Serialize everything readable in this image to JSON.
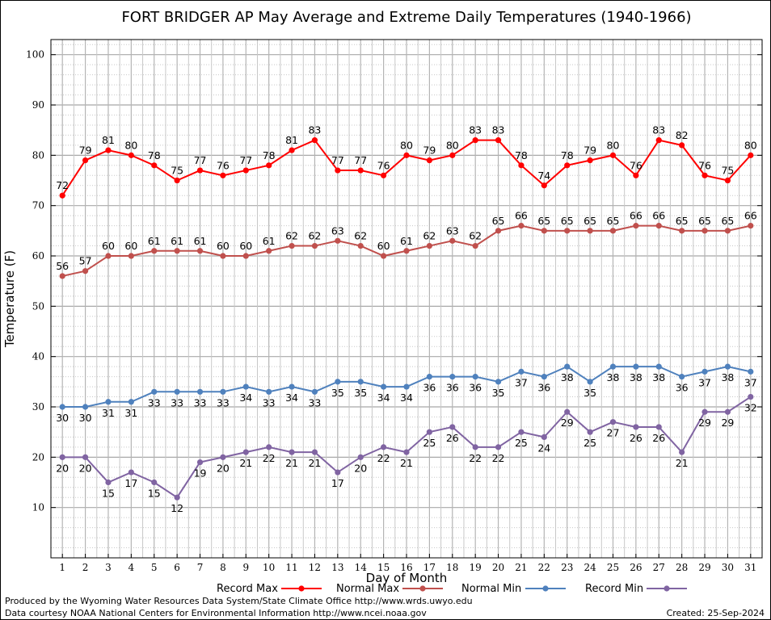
{
  "chart_data": {
    "type": "line",
    "title": "FORT BRIDGER AP May Average and Extreme Daily Temperatures (1940-1966)",
    "xlabel": "Day of Month",
    "ylabel": "Temperature (F)",
    "xlim": [
      0.5,
      31.5
    ],
    "ylim": [
      0,
      103
    ],
    "x": [
      1,
      2,
      3,
      4,
      5,
      6,
      7,
      8,
      9,
      10,
      11,
      12,
      13,
      14,
      15,
      16,
      17,
      18,
      19,
      20,
      21,
      22,
      23,
      24,
      25,
      26,
      27,
      28,
      29,
      30,
      31
    ],
    "x_tick_labels": [
      "1",
      "2",
      "3",
      "4",
      "5",
      "6",
      "7",
      "8",
      "9",
      "10",
      "11",
      "12",
      "13",
      "14",
      "15",
      "16",
      "17",
      "18",
      "19",
      "20",
      "21",
      "22",
      "23",
      "24",
      "25",
      "26",
      "27",
      "28",
      "29",
      "30",
      "31"
    ],
    "y_ticks": [
      10,
      20,
      30,
      40,
      50,
      60,
      70,
      80,
      90,
      100
    ],
    "y_tick_labels": [
      "10",
      "20",
      "30",
      "40",
      "50",
      "60",
      "70",
      "80",
      "90",
      "100"
    ],
    "grid": true,
    "legend_position": "bottom",
    "series": [
      {
        "name": "Record Max",
        "color": "#ff0000",
        "label_pos": "above",
        "values": [
          72,
          79,
          81,
          80,
          78,
          75,
          77,
          76,
          77,
          78,
          81,
          83,
          77,
          77,
          76,
          80,
          79,
          80,
          83,
          83,
          78,
          74,
          78,
          79,
          80,
          76,
          83,
          82,
          76,
          75,
          80
        ]
      },
      {
        "name": "Normal Max",
        "color": "#c0504d",
        "label_pos": "above",
        "values": [
          56,
          57,
          60,
          60,
          61,
          61,
          61,
          60,
          60,
          61,
          62,
          62,
          63,
          62,
          60,
          61,
          62,
          63,
          62,
          65,
          66,
          65,
          65,
          65,
          65,
          66,
          66,
          65,
          65,
          65,
          66
        ]
      },
      {
        "name": "Normal Min",
        "color": "#4f81bd",
        "label_pos": "below",
        "values": [
          30,
          30,
          31,
          31,
          33,
          33,
          33,
          33,
          34,
          33,
          34,
          33,
          35,
          35,
          34,
          34,
          36,
          36,
          36,
          35,
          37,
          36,
          38,
          35,
          38,
          38,
          38,
          36,
          37,
          38,
          37
        ]
      },
      {
        "name": "Record Min",
        "color": "#8064a2",
        "label_pos": "below",
        "values": [
          20,
          20,
          15,
          17,
          15,
          12,
          19,
          20,
          21,
          22,
          21,
          21,
          17,
          20,
          22,
          21,
          25,
          26,
          22,
          22,
          25,
          24,
          29,
          25,
          27,
          26,
          26,
          21,
          29,
          29,
          32
        ]
      }
    ]
  },
  "footer": {
    "produced_by": "Produced by the Wyoming Water Resources Data System/State Climate Office http://www.wrds.uwyo.edu",
    "data_courtesy": "Data courtesy NOAA National Centers for Environmental Information http://www.ncei.noaa.gov",
    "created": "Created: 25-Sep-2024"
  }
}
